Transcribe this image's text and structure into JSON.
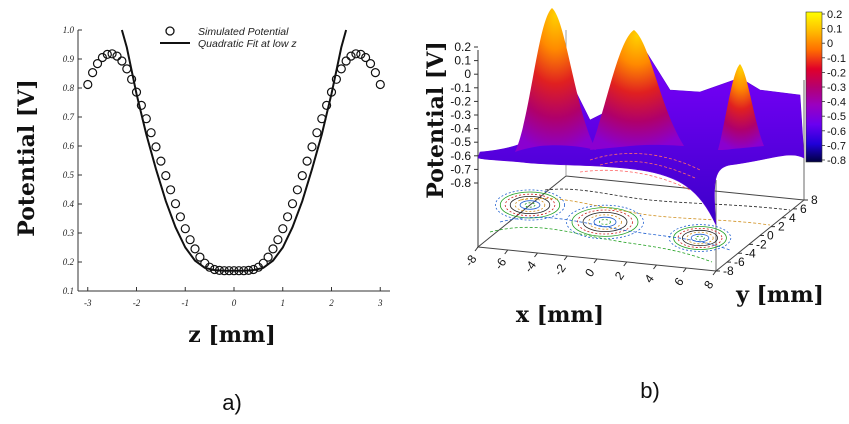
{
  "chart_data": [
    {
      "type": "line",
      "xlabel": "z [mm]",
      "ylabel": "Potential [V]",
      "xlim": [
        -3.2,
        3.2
      ],
      "ylim": [
        0.1,
        1.0
      ],
      "xticks": [
        "-3",
        "-2",
        "-1",
        "0",
        "1",
        "2",
        "3"
      ],
      "yticks": [
        "0.1",
        "0.2",
        "0.3",
        "0.4",
        "0.5",
        "0.6",
        "0.7",
        "0.8",
        "0.9",
        "1.0"
      ],
      "legend": {
        "position": "top-right"
      },
      "series": [
        {
          "name": "Simulated Potential",
          "marker": "open-circle",
          "x": [
            -3.0,
            -2.9,
            -2.8,
            -2.7,
            -2.6,
            -2.5,
            -2.4,
            -2.3,
            -2.2,
            -2.1,
            -2.0,
            -1.9,
            -1.8,
            -1.7,
            -1.6,
            -1.5,
            -1.4,
            -1.3,
            -1.2,
            -1.1,
            -1.0,
            -0.9,
            -0.8,
            -0.7,
            -0.6,
            -0.5,
            -0.4,
            -0.3,
            -0.2,
            -0.1,
            0.0,
            0.1,
            0.2,
            0.3,
            0.4,
            0.5,
            0.6,
            0.7,
            0.8,
            0.9,
            1.0,
            1.1,
            1.2,
            1.3,
            1.4,
            1.5,
            1.6,
            1.7,
            1.8,
            1.9,
            2.0,
            2.1,
            2.2,
            2.3,
            2.4,
            2.5,
            2.6,
            2.7,
            2.8,
            2.9,
            3.0
          ],
          "y": [
            0.812,
            0.853,
            0.884,
            0.905,
            0.916,
            0.918,
            0.91,
            0.893,
            0.866,
            0.83,
            0.786,
            0.74,
            0.694,
            0.646,
            0.597,
            0.548,
            0.498,
            0.449,
            0.401,
            0.356,
            0.315,
            0.277,
            0.245,
            0.217,
            0.196,
            0.182,
            0.174,
            0.171,
            0.17,
            0.17,
            0.17,
            0.17,
            0.17,
            0.171,
            0.174,
            0.182,
            0.196,
            0.217,
            0.245,
            0.277,
            0.315,
            0.356,
            0.401,
            0.449,
            0.498,
            0.548,
            0.597,
            0.646,
            0.694,
            0.74,
            0.786,
            0.83,
            0.866,
            0.893,
            0.91,
            0.918,
            0.916,
            0.905,
            0.884,
            0.853,
            0.812
          ]
        },
        {
          "name": "Quadratic Fit at low z",
          "style": "solid",
          "x": [
            -2.3,
            -2.2,
            -2.0,
            -1.8,
            -1.6,
            -1.4,
            -1.2,
            -1.0,
            -0.8,
            -0.6,
            -0.4,
            -0.2,
            0.0,
            0.2,
            0.4,
            0.6,
            0.8,
            1.0,
            1.2,
            1.4,
            1.6,
            1.8,
            2.0,
            2.2,
            2.3
          ],
          "y": [
            1.0,
            0.94,
            0.78,
            0.64,
            0.52,
            0.41,
            0.32,
            0.25,
            0.205,
            0.18,
            0.172,
            0.17,
            0.17,
            0.17,
            0.172,
            0.18,
            0.205,
            0.25,
            0.32,
            0.41,
            0.52,
            0.64,
            0.78,
            0.94,
            1.0
          ]
        }
      ]
    },
    {
      "type": "surface",
      "xlabel": "x [mm]",
      "ylabel": "y [mm]",
      "zlabel": "Potential [V]",
      "xticks": [
        "-8",
        "-6",
        "-4",
        "-2",
        "0",
        "2",
        "4",
        "6",
        "8"
      ],
      "yticks": [
        "-8",
        "-6",
        "-4",
        "-2",
        "0",
        "2",
        "4",
        "6",
        "8"
      ],
      "zticks": [
        "0.2",
        "0.1",
        "0",
        "-0.1",
        "-0.2",
        "-0.3",
        "-0.4",
        "-0.5",
        "-0.6",
        "-0.7",
        "-0.8"
      ],
      "colorbar": {
        "ticks": [
          "0.2",
          "0.1",
          "0",
          "-0.1",
          "-0.2",
          "-0.3",
          "-0.4",
          "-0.5",
          "-0.6",
          "-0.7",
          "-0.8"
        ],
        "colors": [
          "#ffff00",
          "#ffc000",
          "#ff8000",
          "#ff4000",
          "#e0001a",
          "#b40064",
          "#9a00b4",
          "#7000e0",
          "#4000ff",
          "#1000c0",
          "#000040"
        ]
      },
      "peaks": [
        {
          "x": -4,
          "y": -4,
          "z": 0.2
        },
        {
          "x": 0,
          "y": 0,
          "z": 0.15
        },
        {
          "x": 4,
          "y": 4,
          "z": 0.0
        }
      ],
      "base_level": -0.8
    }
  ],
  "labels": {
    "panel_a": "a)",
    "panel_b": "b)"
  }
}
